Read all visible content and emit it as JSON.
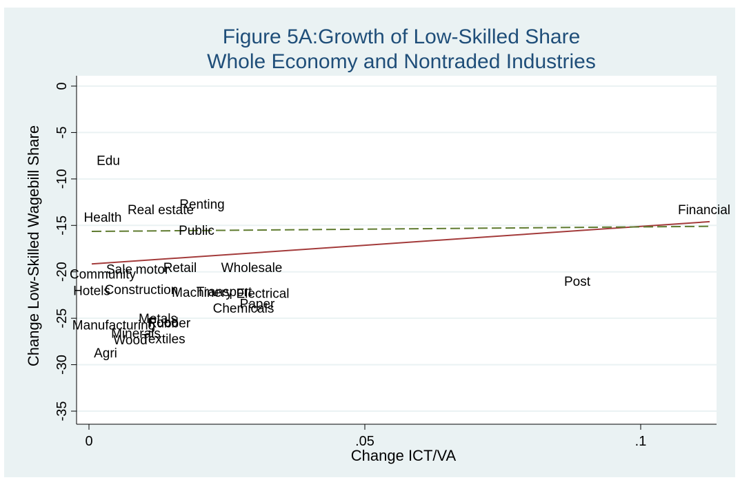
{
  "chart_data": {
    "type": "scatter",
    "title": "Figure 5A:Growth of Low-Skilled Share",
    "subtitle": "Whole Economy and Nontraded Industries",
    "xlabel": "Change ICT/VA",
    "ylabel": "Change Low-Skilled Wagebill Share",
    "xlim": [
      0,
      0.114
    ],
    "ylim": [
      -37,
      1
    ],
    "x_ticks": [
      0,
      0.05,
      0.1
    ],
    "x_tick_labels": [
      "0",
      ".05",
      ".1"
    ],
    "y_ticks": [
      0,
      -5,
      -10,
      -15,
      -20,
      -25,
      -30,
      -35
    ],
    "y_tick_labels": [
      "0",
      "-5",
      "-10",
      "-15",
      "-20",
      "-25",
      "-30",
      "-35"
    ],
    "grid": true,
    "points": [
      {
        "label": "Edu",
        "x": 0.0035,
        "y": -8.1
      },
      {
        "label": "Health",
        "x": 0.0025,
        "y": -14.2
      },
      {
        "label": "Real estate",
        "x": 0.013,
        "y": -13.4
      },
      {
        "label": "Renting",
        "x": 0.0205,
        "y": -12.8
      },
      {
        "label": "Public",
        "x": 0.0195,
        "y": -15.6
      },
      {
        "label": "Financial",
        "x": 0.1115,
        "y": -13.4
      },
      {
        "label": "Community",
        "x": 0.0025,
        "y": -20.3
      },
      {
        "label": "Sale",
        "x": 0.0055,
        "y": -19.8
      },
      {
        "label": "motor",
        "x": 0.0115,
        "y": -19.8
      },
      {
        "label": "Retail",
        "x": 0.0165,
        "y": -19.6
      },
      {
        "label": "Wholesale",
        "x": 0.0295,
        "y": -19.6
      },
      {
        "label": "Post",
        "x": 0.0885,
        "y": -21.1
      },
      {
        "label": "Hotels",
        "x": 0.0005,
        "y": -22.1
      },
      {
        "label": "Construction",
        "x": 0.0095,
        "y": -22.0
      },
      {
        "label": "Machinery",
        "x": 0.0205,
        "y": -22.3
      },
      {
        "label": "Transport",
        "x": 0.0245,
        "y": -22.2
      },
      {
        "label": "Electrical",
        "x": 0.0315,
        "y": -22.4
      },
      {
        "label": "Chemicals",
        "x": 0.028,
        "y": -24.0
      },
      {
        "label": "Paper",
        "x": 0.0305,
        "y": -23.5
      },
      {
        "label": "Metals",
        "x": 0.0125,
        "y": -25.1
      },
      {
        "label": "Rubber",
        "x": 0.0145,
        "y": -25.6
      },
      {
        "label": "Food",
        "x": 0.0135,
        "y": -25.5
      },
      {
        "label": "Manufacturing",
        "x": 0.0045,
        "y": -25.8
      },
      {
        "label": "Minerals",
        "x": 0.0085,
        "y": -26.7
      },
      {
        "label": "Wood",
        "x": 0.0075,
        "y": -27.4
      },
      {
        "label": "Textiles",
        "x": 0.0135,
        "y": -27.3
      },
      {
        "label": "Agri",
        "x": 0.003,
        "y": -28.8
      }
    ],
    "fit_lines": [
      {
        "style": "solid",
        "color": "#a33a3a",
        "x": [
          0.0005,
          0.1125
        ],
        "y": [
          -19.15,
          -14.6
        ]
      },
      {
        "style": "dashed",
        "color": "#5e7a2e",
        "x": [
          0.0005,
          0.1125
        ],
        "y": [
          -15.65,
          -15.1
        ]
      }
    ]
  },
  "colors": {
    "panel_bg": "#eaf2f3",
    "plot_bg": "#ffffff",
    "title": "#1f4e79",
    "text": "#000000",
    "grid": "#eaf2f3"
  }
}
